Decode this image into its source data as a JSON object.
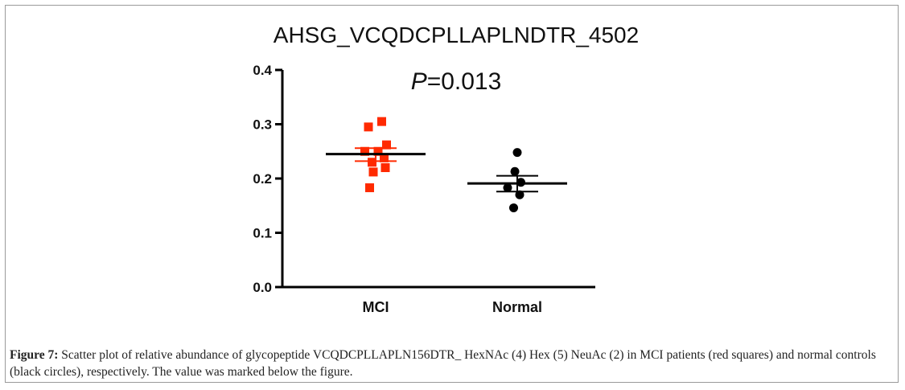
{
  "chart_data": {
    "type": "scatter",
    "title": "AHSG_VCQDCPLLAPLNDTR_4502",
    "annotation": {
      "p_label": "P",
      "p_value": "=0.013"
    },
    "ylim": [
      0.0,
      0.4
    ],
    "yticks": [
      "0.0",
      "0.1",
      "0.2",
      "0.3",
      "0.4"
    ],
    "ytick_values": [
      0.0,
      0.1,
      0.2,
      0.3,
      0.4
    ],
    "categories": [
      "MCI",
      "Normal"
    ],
    "series": [
      {
        "category": "MCI",
        "marker": "square",
        "color": "#ff2a00",
        "mean_color": "#000000",
        "sem_color": "#ff2a00",
        "mean": 0.245,
        "sem": [
          0.232,
          0.256
        ],
        "points": [
          {
            "dx": -0.06,
            "y": 0.295
          },
          {
            "dx": 0.05,
            "y": 0.305
          },
          {
            "dx": 0.09,
            "y": 0.262
          },
          {
            "dx": -0.09,
            "y": 0.25
          },
          {
            "dx": 0.02,
            "y": 0.25
          },
          {
            "dx": 0.07,
            "y": 0.238
          },
          {
            "dx": -0.03,
            "y": 0.23
          },
          {
            "dx": 0.08,
            "y": 0.22
          },
          {
            "dx": -0.02,
            "y": 0.212
          },
          {
            "dx": -0.05,
            "y": 0.183
          }
        ]
      },
      {
        "category": "Normal",
        "marker": "circle",
        "color": "#000000",
        "mean_color": "#000000",
        "sem_color": "#000000",
        "mean": 0.191,
        "sem": [
          0.176,
          0.205
        ],
        "points": [
          {
            "dx": 0.0,
            "y": 0.248
          },
          {
            "dx": -0.02,
            "y": 0.213
          },
          {
            "dx": 0.03,
            "y": 0.193
          },
          {
            "dx": -0.08,
            "y": 0.183
          },
          {
            "dx": 0.02,
            "y": 0.17
          },
          {
            "dx": -0.03,
            "y": 0.146
          }
        ]
      }
    ]
  },
  "caption": {
    "label": "Figure 7:",
    "text": " Scatter plot of relative abundance of glycopeptide VCQDCPLLAPLN156DTR_ HexNAc (4) Hex (5) NeuAc (2) in MCI patients (red squares) and normal controls (black circles), respectively. The value was marked below the figure."
  }
}
